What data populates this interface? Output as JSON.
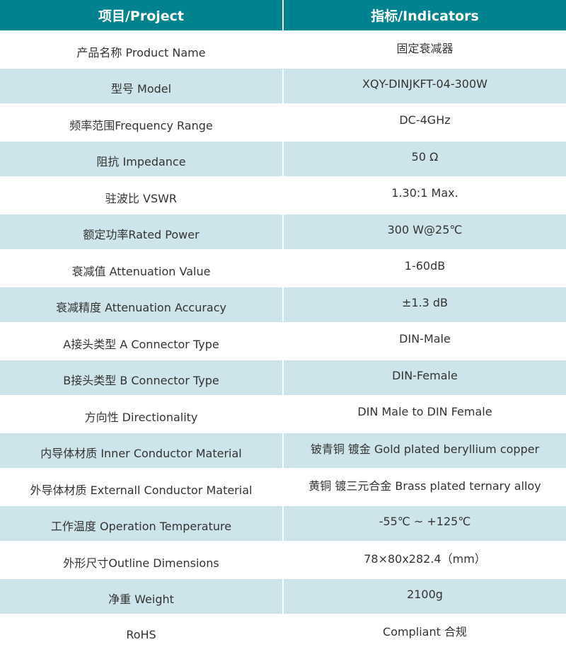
{
  "header": {
    "col1": "项目/Project",
    "col2": "指标/Indicators"
  },
  "colors": {
    "header_bg": "#00838f",
    "alt_row_bg": "#cde5ea"
  },
  "rows": [
    {
      "item": "产品名称 Product Name",
      "value": "固定衰减器"
    },
    {
      "item": "型号 Model",
      "value": "XQY-DINJKFT-04-300W"
    },
    {
      "item": "频率范围Frequency Range",
      "value": "DC-4GHz"
    },
    {
      "item": "阻抗 Impedance",
      "value": "50 Ω"
    },
    {
      "item": "驻波比 VSWR",
      "value": "1.30:1 Max."
    },
    {
      "item": "额定功率Rated Power",
      "value": "300 W@25℃"
    },
    {
      "item": "衰减值 Attenuation Value",
      "value": "1-60dB"
    },
    {
      "item": "衰减精度 Attenuation Accuracy",
      "value": "±1.3 dB"
    },
    {
      "item": "A接头类型 A Connector Type",
      "value": "DIN-Male"
    },
    {
      "item": "B接头类型 B Connector Type",
      "value": "DIN-Female"
    },
    {
      "item": "方向性 Directionality",
      "value": "DIN Male to DIN Female"
    },
    {
      "item": "内导体材质 Inner Conductor Material",
      "value": "铍青铜 镀金 Gold plated beryllium copper"
    },
    {
      "item": "外导体材质 Externall Conductor Material",
      "value": "黄铜 镀三元合金 Brass plated ternary alloy"
    },
    {
      "item": "工作温度 Operation Temperature",
      "value": "-55℃ ~ +125℃"
    },
    {
      "item": "外形尺寸Outline Dimensions",
      "value": "78×80x282.4（mm）"
    },
    {
      "item": "净重 Weight",
      "value": "2100g"
    },
    {
      "item": "RoHS",
      "value": "Compliant 合规"
    }
  ]
}
